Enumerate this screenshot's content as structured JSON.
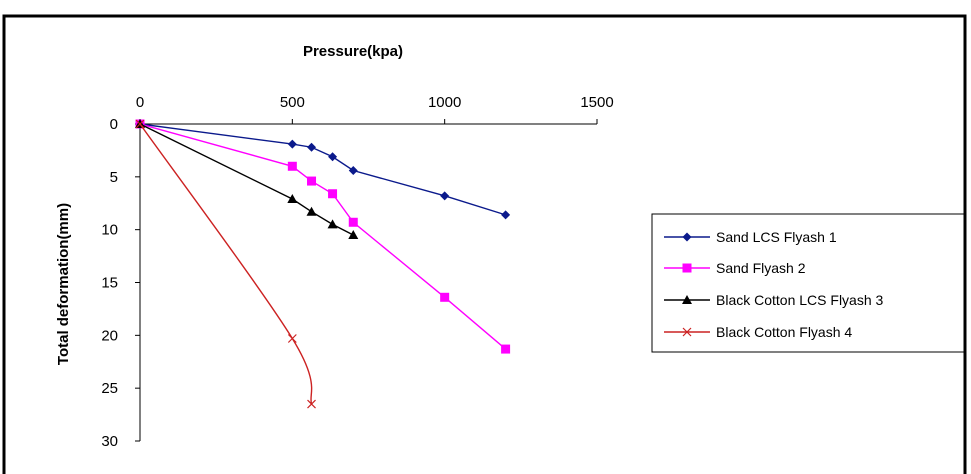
{
  "chart_data": {
    "type": "line",
    "title": "",
    "xlabel": "Pressure(kpa)",
    "ylabel": "Total deformation(mm)",
    "x_axis_position": "top",
    "y_axis_inverted": true,
    "xlim": [
      0,
      1500
    ],
    "ylim": [
      0,
      30
    ],
    "xticks": [
      "0",
      "500",
      "1000",
      "1500"
    ],
    "yticks": [
      "0",
      "5",
      "10",
      "15",
      "20",
      "25",
      "30"
    ],
    "grid": false,
    "legend_position": "right",
    "series": [
      {
        "name": "Sand LCS Flyash 1",
        "color": "#0b1a8c",
        "marker": "diamond",
        "smooth": false,
        "points": [
          [
            0,
            0
          ],
          [
            500,
            1.9
          ],
          [
            563,
            2.2
          ],
          [
            632,
            3.1
          ],
          [
            700,
            4.4
          ],
          [
            1000,
            6.8
          ],
          [
            1200,
            8.6
          ]
        ]
      },
      {
        "name": "Sand Flyash 2",
        "color": "#ff00ff",
        "marker": "square",
        "smooth": false,
        "points": [
          [
            0,
            0
          ],
          [
            500,
            4.0
          ],
          [
            563,
            5.4
          ],
          [
            632,
            6.6
          ],
          [
            700,
            9.3
          ],
          [
            1000,
            16.4
          ],
          [
            1200,
            21.3
          ]
        ]
      },
      {
        "name": "Black Cotton LCS Flyash 3",
        "color": "#000000",
        "marker": "triangle",
        "smooth": false,
        "points": [
          [
            0,
            0
          ],
          [
            500,
            7.1
          ],
          [
            563,
            8.3
          ],
          [
            632,
            9.5
          ],
          [
            700,
            10.5
          ]
        ]
      },
      {
        "name": "Black Cotton Flyash 4",
        "color": "#cc2222",
        "marker": "x",
        "smooth": true,
        "points": [
          [
            0,
            0
          ],
          [
            500,
            20.3
          ],
          [
            563,
            26.5
          ]
        ]
      }
    ]
  }
}
